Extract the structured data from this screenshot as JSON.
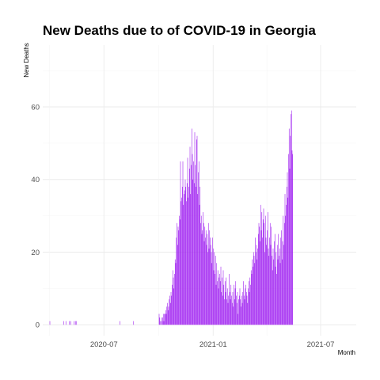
{
  "chart_data": {
    "type": "bar",
    "title": "New Deaths due to of COVID-19 in Georgia",
    "xlabel": "Month",
    "ylabel": "New Deaths",
    "x_ticks": [
      "2020-07",
      "2021-01",
      "2021-07"
    ],
    "y_ticks": [
      0,
      20,
      40,
      60
    ],
    "ylim": [
      -3,
      77
    ],
    "xlim": [
      "2020-03-20",
      "2021-08-30"
    ],
    "grid": true,
    "colors": {
      "bar": "#a020f0"
    },
    "series": [
      {
        "x_start": "2020-04-01",
        "values": [
          1,
          0,
          0,
          0,
          0,
          0,
          0,
          0,
          0,
          0,
          0,
          0,
          0,
          0,
          0,
          0,
          0,
          0,
          0,
          0,
          0,
          0,
          0,
          1,
          0,
          0,
          0,
          1,
          0,
          0,
          0,
          0,
          0,
          1,
          0,
          1,
          0,
          0,
          0,
          0,
          0,
          1,
          0,
          1,
          0,
          1,
          0,
          0,
          0,
          0,
          0,
          0,
          0,
          0,
          0,
          0,
          0,
          0,
          0,
          0,
          0,
          0,
          0,
          0,
          0,
          0,
          0,
          0,
          0,
          0,
          0,
          0,
          0,
          0,
          0,
          0,
          0,
          0,
          0,
          0,
          0,
          0,
          0,
          0,
          0,
          0,
          0,
          0,
          0,
          0,
          0,
          0,
          0,
          0,
          0,
          0,
          0,
          0,
          0,
          0,
          0,
          0,
          0,
          0,
          0,
          0,
          0,
          0,
          0,
          0,
          0,
          0,
          0,
          0,
          0,
          0,
          0,
          0,
          1,
          0,
          0,
          0,
          0,
          0,
          0,
          0,
          0,
          0,
          0,
          0,
          0,
          0,
          0,
          0,
          0,
          0,
          0,
          0,
          0,
          0,
          0,
          1,
          0,
          0,
          0,
          0,
          0,
          0,
          0,
          0,
          0,
          0,
          0,
          0,
          0,
          0,
          0,
          0,
          0,
          0,
          0,
          0,
          0,
          0,
          0,
          0,
          0,
          0,
          0,
          0,
          0,
          0,
          0,
          0,
          0,
          0,
          0,
          0,
          0,
          0,
          0,
          0,
          0,
          0,
          3,
          2,
          1,
          0,
          2,
          1,
          2,
          3,
          1,
          3,
          3,
          4,
          3,
          5,
          6,
          4,
          5,
          7,
          8,
          6,
          9,
          8,
          11,
          15,
          13,
          10,
          14,
          18,
          17,
          24,
          28,
          22,
          27,
          26,
          30,
          29,
          45,
          34,
          35,
          38,
          45,
          33,
          36,
          37,
          40,
          38,
          34,
          39,
          46,
          35,
          38,
          43,
          49,
          36,
          44,
          54,
          47,
          40,
          45,
          39,
          53,
          44,
          38,
          51,
          52,
          36,
          42,
          45,
          33,
          38,
          28,
          30,
          25,
          26,
          31,
          28,
          23,
          27,
          24,
          26,
          22,
          25,
          20,
          28,
          21,
          26,
          24,
          22,
          20,
          17,
          24,
          21,
          15,
          20,
          14,
          19,
          11,
          17,
          12,
          15,
          10,
          13,
          14,
          12,
          16,
          9,
          13,
          8,
          15,
          11,
          7,
          12,
          9,
          13,
          7,
          10,
          6,
          8,
          14,
          9,
          7,
          11,
          8,
          6,
          9,
          5,
          11,
          7,
          10,
          12,
          8,
          6,
          9,
          3,
          7,
          8,
          10,
          7,
          5,
          8,
          6,
          9,
          12,
          8,
          7,
          10,
          11,
          9,
          8,
          6,
          10,
          12,
          9,
          13,
          11,
          15,
          14,
          18,
          16,
          20,
          19,
          17,
          24,
          20,
          22,
          18,
          21,
          25,
          28,
          27,
          23,
          33,
          26,
          31,
          24,
          29,
          32,
          28,
          20,
          30,
          24,
          22,
          26,
          31,
          21,
          19,
          24,
          28,
          22,
          27,
          19,
          15,
          21,
          18,
          23,
          25,
          16,
          20,
          14,
          22,
          18,
          25,
          19,
          21,
          17,
          24,
          26,
          18,
          23,
          30,
          22,
          28,
          36,
          30,
          33,
          38,
          42,
          35,
          47,
          54,
          43,
          52,
          58,
          59,
          48,
          47
        ]
      }
    ]
  }
}
